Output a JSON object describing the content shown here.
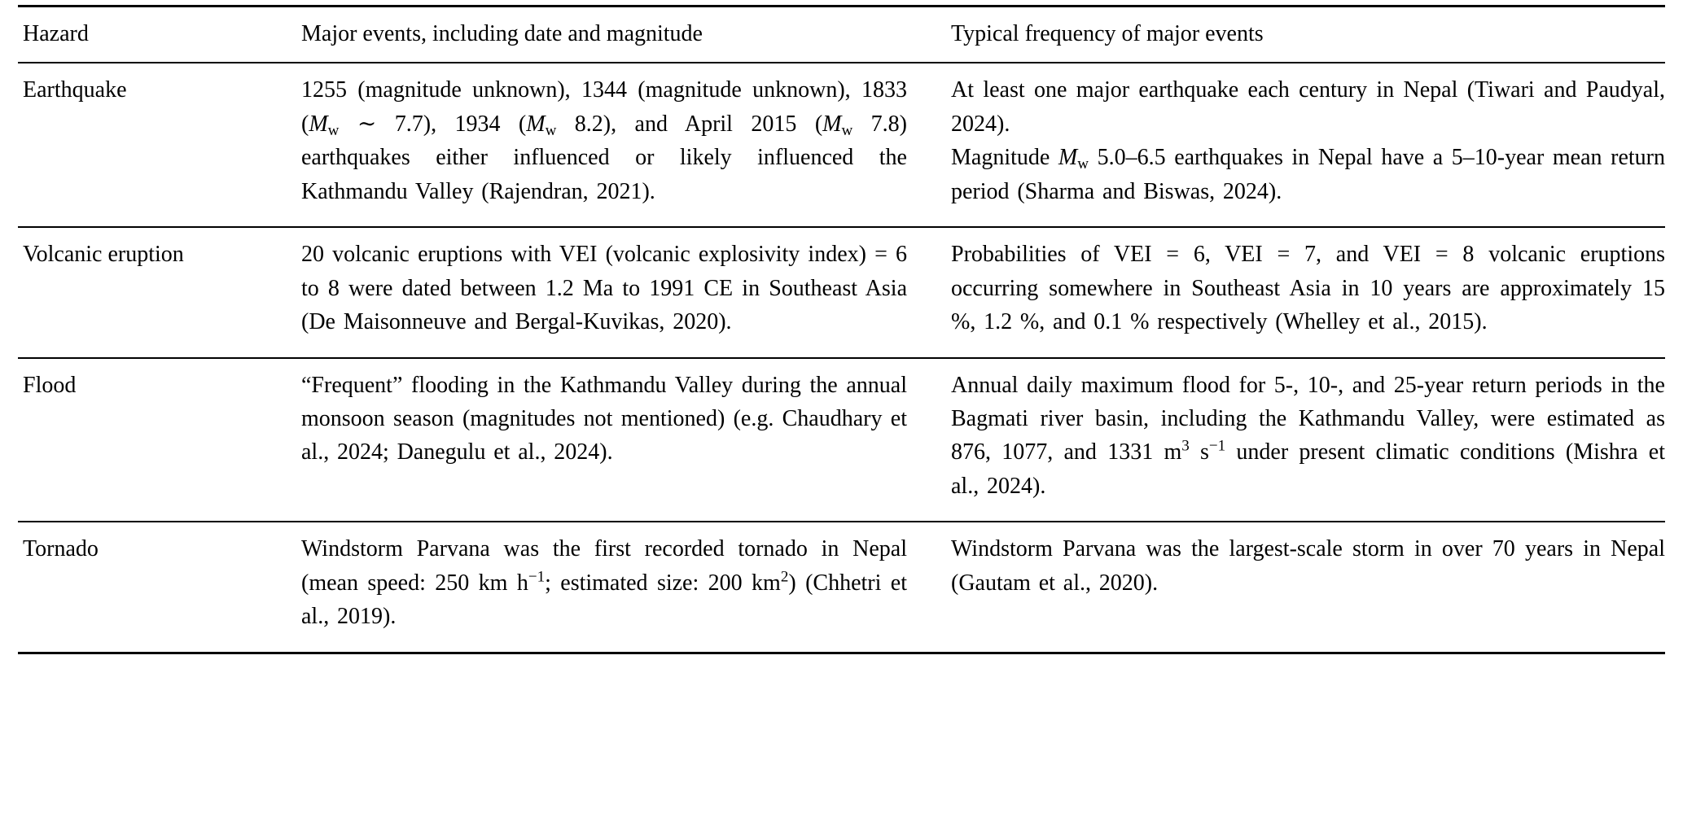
{
  "table": {
    "header": {
      "hazard": "Hazard",
      "major_events": "Major events, including date and magnitude",
      "frequency": "Typical frequency of major events"
    },
    "rows": [
      {
        "hazard": "Earthquake",
        "major_events": [
          [
            {
              "t": "1255 (magnitude unknown), 1344 (magnitude unknown), 1833 ("
            },
            {
              "t": "M",
              "f": "i"
            },
            {
              "t": "w",
              "f": "sub"
            },
            {
              "t": " ∼ 7.7), 1934 ("
            },
            {
              "t": "M",
              "f": "i"
            },
            {
              "t": "w",
              "f": "sub"
            },
            {
              "t": " 8.2), and April 2015 ("
            },
            {
              "t": "M",
              "f": "i"
            },
            {
              "t": "w",
              "f": "sub"
            },
            {
              "t": " 7.8) earthquakes either influenced or likely influenced the Kathmandu Valley (Rajendran, 2021)."
            }
          ]
        ],
        "frequency": [
          [
            {
              "t": "At least one major earthquake each century in Nepal (Tiwari and Paudyal, 2024)."
            }
          ],
          [
            {
              "t": "Magnitude "
            },
            {
              "t": "M",
              "f": "i"
            },
            {
              "t": "w",
              "f": "sub"
            },
            {
              "t": " 5.0–6.5 earthquakes in Nepal have a 5–10-year mean return period (Sharma and Biswas, 2024)."
            }
          ]
        ]
      },
      {
        "hazard": "Volcanic eruption",
        "major_events": [
          [
            {
              "t": "20 volcanic eruptions with VEI (volcanic explosivity index) = 6 to 8 were dated between 1.2 Ma to 1991 CE in Southeast Asia (De Maisonneuve and Bergal-Kuvikas, 2020)."
            }
          ]
        ],
        "frequency": [
          [
            {
              "t": "Probabilities of VEI = 6, VEI = 7, and VEI = 8 volcanic eruptions occurring somewhere in Southeast Asia in 10 years are approximately 15 %, 1.2 %, and 0.1 % respectively (Whelley et al., 2015)."
            }
          ]
        ]
      },
      {
        "hazard": "Flood",
        "major_events": [
          [
            {
              "t": "“Frequent” flooding in the Kathmandu Valley during the annual monsoon season (magnitudes not mentioned) (e.g. Chaudhary et al., 2024; Danegulu et al., 2024)."
            }
          ]
        ],
        "frequency": [
          [
            {
              "t": "Annual daily maximum flood for 5-, 10-, and 25-year return periods in the Bagmati river basin, including the Kathmandu Valley, were estimated as 876, 1077, and 1331 m"
            },
            {
              "t": "3",
              "f": "sup"
            },
            {
              "t": " s"
            },
            {
              "t": "−1",
              "f": "sup"
            },
            {
              "t": " under present climatic conditions (Mishra et al., 2024)."
            }
          ]
        ]
      },
      {
        "hazard": "Tornado",
        "major_events": [
          [
            {
              "t": "Windstorm Parvana was the first recorded tornado in Nepal (mean speed: 250 km h"
            },
            {
              "t": "−1",
              "f": "sup"
            },
            {
              "t": "; estimated size: 200 km"
            },
            {
              "t": "2",
              "f": "sup"
            },
            {
              "t": ") (Chhetri et al., 2019)."
            }
          ]
        ],
        "frequency": [
          [
            {
              "t": "Windstorm Parvana was the largest-scale storm in over 70 years in Nepal (Gautam et al., 2020)."
            }
          ]
        ]
      }
    ]
  }
}
